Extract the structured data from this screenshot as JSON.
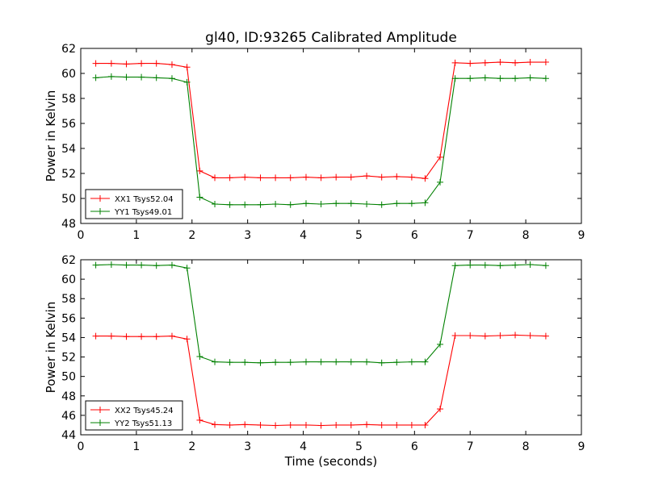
{
  "figure": {
    "title": "gl40, ID:93265 Calibrated Amplitude"
  },
  "chart_data": [
    {
      "type": "line",
      "title": "gl40, ID:93265 Calibrated Amplitude",
      "xlabel": "",
      "ylabel": "Power in Kelvin",
      "xlim": [
        0,
        9
      ],
      "ylim": [
        48,
        62
      ],
      "xticks": [
        0,
        1,
        2,
        3,
        4,
        5,
        6,
        7,
        8,
        9
      ],
      "yticks": [
        48,
        50,
        52,
        54,
        56,
        58,
        60,
        62
      ],
      "grid": false,
      "legend_position": "lower-left",
      "x": [
        0.27,
        0.55,
        0.82,
        1.09,
        1.36,
        1.64,
        1.91,
        2.14,
        2.41,
        2.68,
        2.95,
        3.23,
        3.5,
        3.77,
        4.05,
        4.32,
        4.59,
        4.86,
        5.14,
        5.41,
        5.68,
        5.95,
        6.19,
        6.46,
        6.73,
        7.0,
        7.27,
        7.54,
        7.81,
        8.08,
        8.36
      ],
      "series": [
        {
          "name": "XX1 Tsys52.04",
          "color": "#ff0000",
          "values": [
            60.8,
            60.8,
            60.75,
            60.8,
            60.8,
            60.7,
            60.5,
            52.2,
            51.65,
            51.65,
            51.7,
            51.65,
            51.65,
            51.65,
            51.7,
            51.65,
            51.7,
            51.7,
            51.8,
            51.7,
            51.75,
            51.7,
            51.6,
            53.3,
            60.85,
            60.8,
            60.85,
            60.9,
            60.85,
            60.9,
            60.9
          ]
        },
        {
          "name": "YY1 Tsys49.01",
          "color": "#008000",
          "values": [
            59.65,
            59.75,
            59.7,
            59.7,
            59.65,
            59.6,
            59.3,
            50.1,
            49.55,
            49.5,
            49.5,
            49.5,
            49.55,
            49.5,
            49.6,
            49.55,
            49.6,
            49.6,
            49.55,
            49.5,
            49.6,
            49.6,
            49.65,
            51.3,
            59.6,
            59.6,
            59.65,
            59.6,
            59.6,
            59.65,
            59.6
          ]
        }
      ]
    },
    {
      "type": "line",
      "title": "",
      "xlabel": "Time (seconds)",
      "ylabel": "Power in Kelvin",
      "xlim": [
        0,
        9
      ],
      "ylim": [
        44,
        62
      ],
      "xticks": [
        0,
        1,
        2,
        3,
        4,
        5,
        6,
        7,
        8,
        9
      ],
      "yticks": [
        44,
        46,
        48,
        50,
        52,
        54,
        56,
        58,
        60,
        62
      ],
      "grid": false,
      "legend_position": "lower-left",
      "x": [
        0.27,
        0.55,
        0.82,
        1.09,
        1.36,
        1.64,
        1.91,
        2.14,
        2.41,
        2.68,
        2.95,
        3.23,
        3.5,
        3.77,
        4.05,
        4.32,
        4.59,
        4.86,
        5.14,
        5.41,
        5.68,
        5.95,
        6.19,
        6.46,
        6.73,
        7.0,
        7.27,
        7.54,
        7.81,
        8.08,
        8.36
      ],
      "series": [
        {
          "name": "XX2 Tsys45.24",
          "color": "#ff0000",
          "values": [
            54.15,
            54.15,
            54.1,
            54.1,
            54.1,
            54.15,
            53.85,
            45.5,
            45.05,
            45.0,
            45.05,
            45.0,
            44.95,
            45.0,
            45.0,
            44.95,
            45.0,
            45.0,
            45.05,
            45.0,
            45.0,
            45.0,
            45.0,
            46.65,
            54.2,
            54.2,
            54.15,
            54.2,
            54.25,
            54.2,
            54.15
          ]
        },
        {
          "name": "YY2 Tsys51.13",
          "color": "#008000",
          "values": [
            61.45,
            61.5,
            61.45,
            61.45,
            61.4,
            61.45,
            61.15,
            52.05,
            51.5,
            51.45,
            51.45,
            51.4,
            51.45,
            51.45,
            51.5,
            51.5,
            51.5,
            51.5,
            51.5,
            51.4,
            51.45,
            51.5,
            51.5,
            53.3,
            61.4,
            61.45,
            61.45,
            61.4,
            61.45,
            61.5,
            61.4
          ]
        }
      ]
    }
  ]
}
